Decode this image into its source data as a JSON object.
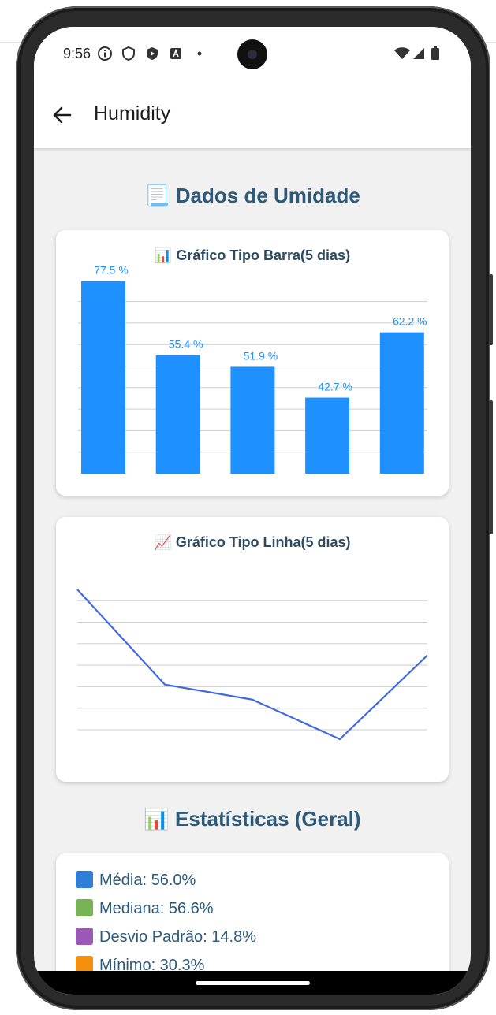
{
  "status_bar": {
    "time": "9:56"
  },
  "app_bar": {
    "title": "Humidity"
  },
  "page": {
    "section_title": "📃 Dados de Umidade"
  },
  "bar_card": {
    "title": "📊 Gráfico Tipo Barra(5 dias)"
  },
  "line_card": {
    "title": "📈 Gráfico Tipo Linha(5 dias)"
  },
  "stats": {
    "title": "📊 Estatísticas (Geral)",
    "items": [
      {
        "text": "Média: 56.0%",
        "color": "#2f7fd6"
      },
      {
        "text": "Mediana: 56.6%",
        "color": "#77b255"
      },
      {
        "text": "Desvio Padrão: 14.8%",
        "color": "#9b59b6"
      },
      {
        "text": "Mínimo: 30.3%",
        "color": "#f4900c"
      }
    ]
  },
  "colors": {
    "bar": "#1e90ff",
    "line": "#4169e1",
    "title": "#2e5a7a"
  },
  "chart_data": [
    {
      "type": "bar",
      "title": "📊 Gráfico Tipo Barra(5 dias)",
      "values": [
        77.5,
        55.4,
        51.9,
        42.7,
        62.2
      ],
      "labels": [
        "77.5  %",
        "55.4  %",
        "51.9  %",
        "42.7  %",
        "62.2  %"
      ],
      "ylim": [
        20,
        80
      ],
      "grid": true
    },
    {
      "type": "line",
      "title": "📈 Gráfico Tipo Linha(5 dias)",
      "values": [
        77.5,
        55.4,
        51.9,
        42.7,
        62.2
      ],
      "ylim": [
        20,
        80
      ],
      "grid": true
    }
  ]
}
